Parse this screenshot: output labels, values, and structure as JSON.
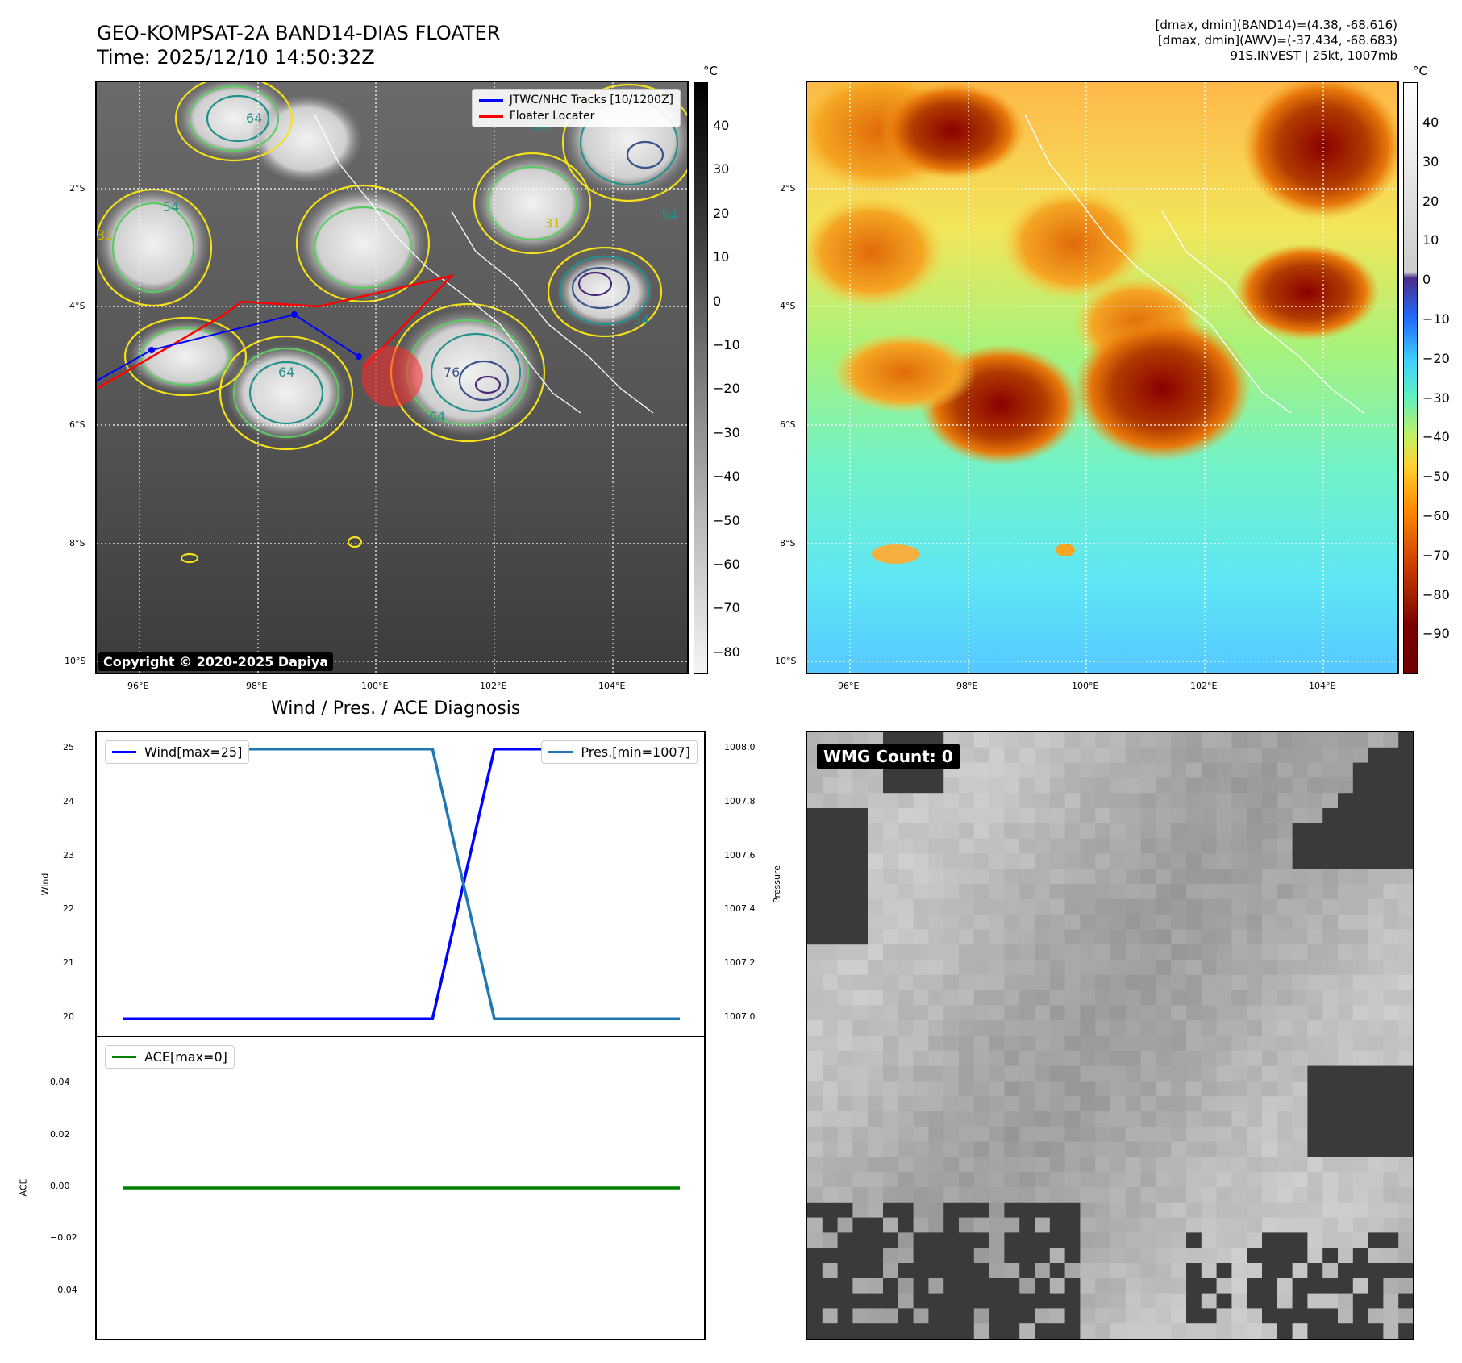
{
  "header": {
    "title_line1": "GEO-KOMPSAT-2A BAND14-DIAS FLOATER",
    "title_line2": "Time: 2025/12/10 14:50:32Z",
    "stats_line1": "[dmax, dmin](BAND14)=(4.38, -68.616)",
    "stats_line2": "[dmax, dmin](AWV)=(-37.434, -68.683)",
    "stats_line3": "91S.INVEST | 25kt, 1007mb"
  },
  "map": {
    "lat_ticks": [
      "2°S",
      "4°S",
      "6°S",
      "8°S",
      "10°S"
    ],
    "lon_ticks": [
      "96°E",
      "98°E",
      "100°E",
      "102°E",
      "104°E"
    ],
    "copyright": "Copyright © 2020-2025 Dapiya",
    "legend": [
      {
        "label": "JTWC/NHC Tracks [10/1200Z]",
        "color": "#0000ff"
      },
      {
        "label": "Floater Locater",
        "color": "#ff0000"
      }
    ],
    "contour_labels": [
      "64",
      "54",
      "31",
      "54",
      "31",
      "76",
      "64",
      "64",
      "64",
      "54"
    ],
    "colorbar_gray": {
      "unit": "°C",
      "ticks": [
        "40",
        "30",
        "20",
        "10",
        "0",
        "−10",
        "−20",
        "−30",
        "−40",
        "−50",
        "−60",
        "−70",
        "−80"
      ]
    },
    "colorbar_color": {
      "unit": "°C",
      "ticks": [
        "40",
        "30",
        "20",
        "10",
        "0",
        "−10",
        "−20",
        "−30",
        "−40",
        "−50",
        "−60",
        "−70",
        "−80",
        "−90"
      ]
    }
  },
  "diagnosis": {
    "title": "Wind / Pres. / ACE Diagnosis",
    "wind_label": "Wind",
    "pressure_label": "Pressure",
    "ace_label": "ACE",
    "legend_wind": "Wind[max=25]",
    "legend_pres": "Pres.[min=1007]",
    "legend_ace": "ACE[max=0]",
    "wmg_count": "WMG Count: 0",
    "colors": {
      "wind": "#0000ff",
      "pressure": "#1f77b4",
      "ace": "#008000"
    }
  },
  "chart_data": [
    {
      "type": "line",
      "title": "Wind / Pres. / ACE Diagnosis",
      "ylabel": "Wind",
      "ylabel_right": "Pressure",
      "ylim": [
        19.9,
        25.1
      ],
      "ylim_right": [
        1006.98,
        1008.02
      ],
      "y_ticks": [
        "20",
        "21",
        "22",
        "23",
        "24",
        "25"
      ],
      "y_ticks_right": [
        "1007.0",
        "1007.2",
        "1007.4",
        "1007.6",
        "1007.8",
        "1008.0"
      ],
      "series": [
        {
          "name": "Wind[max=25]",
          "axis": "left",
          "values": [
            20,
            20,
            20,
            20,
            20,
            20,
            25,
            25,
            25,
            25
          ]
        },
        {
          "name": "Pres.[min=1007]",
          "axis": "right",
          "values": [
            1008,
            1008,
            1008,
            1008,
            1008,
            1008,
            1007,
            1007,
            1007,
            1007
          ]
        }
      ]
    },
    {
      "type": "line",
      "ylabel": "ACE",
      "ylim": [
        -0.055,
        0.055
      ],
      "y_ticks": [
        "0.04",
        "0.02",
        "0.00",
        "−0.02",
        "−0.04"
      ],
      "y_tick_values": [
        0.04,
        0.02,
        0,
        -0.02,
        -0.04
      ],
      "series": [
        {
          "name": "ACE[max=0]",
          "values": [
            0,
            0
          ]
        }
      ]
    }
  ]
}
